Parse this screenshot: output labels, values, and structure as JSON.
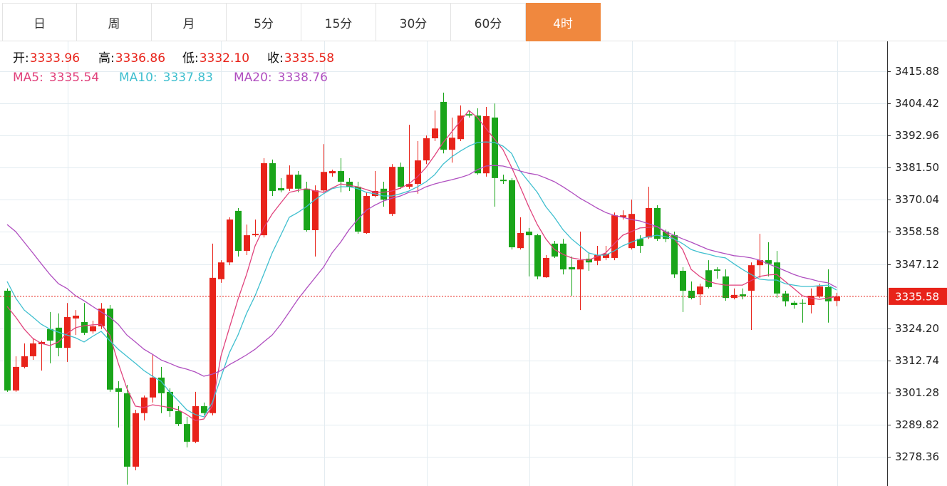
{
  "tabs": [
    "日",
    "周",
    "月",
    "5分",
    "15分",
    "30分",
    "60分",
    "4时"
  ],
  "active_tab": 7,
  "chart_data": {
    "type": "candlestick",
    "up_color": "#e8231a",
    "down_color": "#1aa51a",
    "quote": [
      {
        "label": "开:",
        "value": 3333.96
      },
      {
        "label": "高:",
        "value": 3336.86
      },
      {
        "label": "低:",
        "value": 3332.1,
        "value_label": "3332.10"
      },
      {
        "label": "收:",
        "value": 3335.58
      }
    ],
    "open": [
      3337.6,
      3302.0,
      3310.4,
      3314.2,
      3318.5,
      3323.9,
      3324.4,
      3317.2,
      3327.7,
      3326.4,
      3323.1,
      3324.9,
      3331.2,
      3302.8,
      3301.0,
      3274.8,
      3293.9,
      3299.5,
      3306.6,
      3301.5,
      3294.6,
      3290.0,
      3283.7,
      3296.4,
      3293.9,
      3341.7,
      3347.7,
      3366.1,
      3351.8,
      3357.4,
      3357.4,
      3383.1,
      3374.2,
      3374.0,
      3379.0,
      3374.0,
      3359.2,
      3373.4,
      3379.5,
      3380.3,
      3376.5,
      3374.7,
      3358.2,
      3371.4,
      3374.0,
      3365.0,
      3381.8,
      3374.7,
      3375.7,
      3384.1,
      3392.0,
      3405.0,
      3387.9,
      3391.7,
      3400.6,
      3400.1,
      3379.5,
      3399.4,
      3377.2,
      3377.0,
      3352.8,
      3358.7,
      3357.4,
      3342.4,
      3354.4,
      3354.4,
      3346.0,
      3345.2,
      3349.0,
      3348.3,
      3349.3,
      3349.3,
      3363.8,
      3352.8,
      3356.1,
      3356.6,
      3367.1,
      3358.7,
      3357.4,
      3344.7,
      3337.6,
      3336.3,
      3344.9,
      3345.2,
      3342.7,
      3335.0,
      3336.3,
      3337.6,
      3346.7,
      3348.5,
      3347.7,
      3336.6,
      3333.3,
      3333.3,
      3332.5,
      3335.5,
      3338.9,
      3333.96
    ],
    "close": [
      3302.0,
      3310.4,
      3314.2,
      3318.8,
      3319.3,
      3319.8,
      3317.2,
      3328.2,
      3328.7,
      3322.6,
      3324.9,
      3331.2,
      3302.3,
      3301.5,
      3274.8,
      3293.9,
      3299.5,
      3306.6,
      3301.0,
      3294.6,
      3290.0,
      3283.7,
      3296.4,
      3293.9,
      3342.2,
      3347.7,
      3363.0,
      3351.8,
      3357.4,
      3357.9,
      3383.1,
      3373.2,
      3373.4,
      3379.0,
      3374.0,
      3359.2,
      3373.4,
      3380.0,
      3380.3,
      3376.5,
      3374.7,
      3358.7,
      3371.4,
      3373.2,
      3370.1,
      3381.8,
      3374.7,
      3375.7,
      3384.1,
      3392.0,
      3395.5,
      3387.9,
      3392.2,
      3400.1,
      3400.1,
      3379.5,
      3399.9,
      3377.8,
      3376.7,
      3353.1,
      3358.2,
      3357.4,
      3342.7,
      3349.3,
      3349.8,
      3345.2,
      3345.2,
      3348.5,
      3347.7,
      3350.3,
      3350.8,
      3364.5,
      3364.5,
      3365.0,
      3353.6,
      3367.1,
      3356.1,
      3356.1,
      3343.4,
      3337.6,
      3335.0,
      3339.1,
      3338.9,
      3344.7,
      3335.0,
      3336.1,
      3335.6,
      3346.7,
      3348.5,
      3347.2,
      3336.6,
      3333.8,
      3332.5,
      3333.0,
      3335.8,
      3339.1,
      3333.8,
      3335.58
    ],
    "high": [
      3338.4,
      3314.2,
      3318.8,
      3320.6,
      3319.8,
      3330.0,
      3329.5,
      3333.2,
      3330.7,
      3333.2,
      3326.9,
      3333.2,
      3332.5,
      3305.3,
      3304.0,
      3295.1,
      3300.2,
      3314.7,
      3310.4,
      3302.8,
      3296.4,
      3292.6,
      3301.5,
      3297.7,
      3354.4,
      3348.5,
      3363.8,
      3367.1,
      3361.2,
      3363.0,
      3384.9,
      3384.4,
      3377.8,
      3382.3,
      3380.3,
      3376.5,
      3375.2,
      3389.9,
      3380.8,
      3384.9,
      3377.8,
      3376.5,
      3372.7,
      3380.3,
      3376.5,
      3382.8,
      3383.3,
      3396.8,
      3391.0,
      3393.0,
      3401.9,
      3408.3,
      3399.4,
      3403.7,
      3401.9,
      3402.7,
      3403.2,
      3404.4,
      3379.0,
      3377.8,
      3363.8,
      3360.0,
      3357.9,
      3350.3,
      3355.4,
      3356.1,
      3349.8,
      3358.7,
      3351.1,
      3353.6,
      3353.6,
      3365.5,
      3366.3,
      3370.1,
      3357.4,
      3374.7,
      3368.1,
      3359.4,
      3358.7,
      3346.0,
      3340.9,
      3340.1,
      3348.5,
      3346.0,
      3345.2,
      3338.4,
      3338.4,
      3347.7,
      3357.9,
      3354.9,
      3351.8,
      3337.6,
      3334.0,
      3334.5,
      3338.4,
      3340.1,
      3345.2,
      3336.86
    ],
    "low": [
      3301.5,
      3301.5,
      3309.9,
      3312.9,
      3309.1,
      3311.7,
      3314.2,
      3312.2,
      3321.8,
      3321.8,
      3322.3,
      3323.9,
      3301.5,
      3288.8,
      3268.4,
      3273.5,
      3291.3,
      3297.7,
      3293.9,
      3292.6,
      3289.3,
      3281.7,
      3283.2,
      3293.3,
      3293.1,
      3340.4,
      3346.7,
      3349.8,
      3350.3,
      3356.9,
      3356.6,
      3371.4,
      3372.7,
      3373.2,
      3372.7,
      3358.7,
      3349.8,
      3372.7,
      3378.3,
      3372.7,
      3373.2,
      3357.9,
      3357.9,
      3370.9,
      3367.6,
      3364.3,
      3374.0,
      3374.0,
      3372.2,
      3382.8,
      3391.0,
      3386.6,
      3383.3,
      3391.0,
      3399.4,
      3379.0,
      3378.3,
      3367.6,
      3375.7,
      3352.3,
      3352.3,
      3342.7,
      3341.7,
      3342.2,
      3349.3,
      3343.4,
      3335.8,
      3330.7,
      3344.7,
      3346.7,
      3348.5,
      3348.5,
      3363.0,
      3352.3,
      3351.1,
      3356.1,
      3355.4,
      3354.9,
      3342.2,
      3330.0,
      3334.5,
      3332.5,
      3338.4,
      3341.9,
      3334.0,
      3334.5,
      3334.5,
      3323.6,
      3342.2,
      3342.7,
      3335.0,
      3332.0,
      3331.2,
      3326.2,
      3329.5,
      3335.0,
      3326.2,
      3332.1
    ],
    "series": [
      {
        "name": "MA5:",
        "color": "#e0427c",
        "values": [
          3332.0,
          3328.2,
          3323.9,
          3320.6,
          3318.8,
          3318.0,
          3319.3,
          3322.3,
          3324.4,
          3325.1,
          3325.4,
          3325.6,
          3321.8,
          3311.7,
          3302.8,
          3296.4,
          3295.9,
          3296.9,
          3296.4,
          3295.9,
          3295.1,
          3293.4,
          3291.3,
          3291.8,
          3296.4,
          3314.2,
          3324.4,
          3334.5,
          3343.4,
          3353.6,
          3360.0,
          3365.0,
          3368.9,
          3372.7,
          3373.4,
          3374.0,
          3373.2,
          3372.7,
          3374.2,
          3375.7,
          3375.2,
          3374.7,
          3373.7,
          3372.7,
          3372.7,
          3373.2,
          3374.2,
          3375.7,
          3378.3,
          3381.6,
          3385.9,
          3390.5,
          3394.3,
          3398.1,
          3401.9,
          3399.4,
          3395.5,
          3391.7,
          3387.9,
          3381.6,
          3374.7,
          3367.6,
          3361.2,
          3356.1,
          3352.3,
          3350.6,
          3349.3,
          3348.8,
          3348.5,
          3349.8,
          3351.1,
          3354.4,
          3357.4,
          3358.7,
          3360.0,
          3360.2,
          3360.5,
          3358.4,
          3356.1,
          3352.3,
          3345.2,
          3342.7,
          3340.9,
          3340.1,
          3339.6,
          3339.6,
          3339.6,
          3341.2,
          3342.7,
          3343.2,
          3343.4,
          3340.9,
          3338.4,
          3335.8,
          3335.0,
          3334.5,
          3335.0,
          3335.54
        ]
      },
      {
        "name": "MA10:",
        "color": "#3fbfcf",
        "values": [
          3340.9,
          3335.0,
          3330.7,
          3328.2,
          3325.6,
          3323.9,
          3322.8,
          3321.8,
          3320.8,
          3319.3,
          3321.3,
          3323.1,
          3319.8,
          3316.7,
          3314.2,
          3311.7,
          3309.1,
          3307.1,
          3305.3,
          3301.5,
          3298.4,
          3295.1,
          3293.4,
          3292.6,
          3297.7,
          3306.6,
          3315.5,
          3321.8,
          3329.5,
          3335.8,
          3343.4,
          3351.1,
          3357.4,
          3363.8,
          3365.5,
          3367.6,
          3370.1,
          3372.2,
          3374.0,
          3374.7,
          3374.7,
          3374.0,
          3372.7,
          3372.2,
          3371.4,
          3371.4,
          3372.2,
          3373.2,
          3374.7,
          3376.5,
          3379.0,
          3382.8,
          3385.4,
          3387.4,
          3389.2,
          3390.5,
          3390.7,
          3390.5,
          3389.2,
          3386.6,
          3380.3,
          3376.5,
          3372.7,
          3367.6,
          3363.8,
          3359.4,
          3356.1,
          3353.6,
          3351.1,
          3350.3,
          3350.3,
          3351.8,
          3353.6,
          3354.9,
          3356.1,
          3356.9,
          3357.4,
          3356.9,
          3356.1,
          3354.4,
          3352.3,
          3351.3,
          3350.6,
          3349.8,
          3349.3,
          3347.2,
          3345.2,
          3343.4,
          3341.7,
          3341.4,
          3341.4,
          3340.1,
          3339.6,
          3339.1,
          3339.1,
          3339.4,
          3339.6,
          3337.83
        ]
      },
      {
        "name": "MA20:",
        "color": "#b04fc0",
        "values": [
          3361.2,
          3358.7,
          3354.9,
          3351.1,
          3347.2,
          3343.4,
          3340.1,
          3338.4,
          3335.8,
          3334.0,
          3332.0,
          3330.0,
          3328.2,
          3325.6,
          3321.8,
          3319.3,
          3316.7,
          3314.9,
          3312.9,
          3311.7,
          3310.4,
          3309.6,
          3308.6,
          3307.1,
          3307.8,
          3309.1,
          3311.2,
          3312.9,
          3314.7,
          3316.7,
          3319.3,
          3321.8,
          3325.6,
          3330.0,
          3334.5,
          3338.4,
          3342.2,
          3346.0,
          3351.1,
          3354.9,
          3359.4,
          3363.0,
          3366.3,
          3368.1,
          3369.6,
          3370.6,
          3371.4,
          3372.7,
          3373.2,
          3374.7,
          3375.7,
          3376.5,
          3377.2,
          3378.0,
          3379.0,
          3380.8,
          3382.1,
          3382.3,
          3382.1,
          3381.3,
          3380.3,
          3379.5,
          3379.0,
          3377.8,
          3376.5,
          3374.7,
          3372.7,
          3370.6,
          3368.9,
          3367.1,
          3365.5,
          3364.5,
          3363.8,
          3363.0,
          3362.5,
          3361.5,
          3360.5,
          3358.7,
          3357.4,
          3356.1,
          3354.9,
          3353.6,
          3352.3,
          3351.5,
          3350.8,
          3350.1,
          3349.8,
          3349.3,
          3348.5,
          3347.2,
          3346.0,
          3344.7,
          3343.4,
          3342.4,
          3341.7,
          3340.9,
          3340.4,
          3338.76
        ]
      }
    ],
    "ylim": [
      3267.9,
      3426.6
    ],
    "yticks": [
      3415.88,
      3404.42,
      3392.96,
      {
        "value": 3381.5,
        "label": "3381.50"
      },
      3370.04,
      3358.58,
      3347.12,
      {
        "value": 3324.2,
        "label": "3324.20"
      },
      3312.74,
      3301.28,
      3289.82,
      3278.36
    ],
    "grid": true
  }
}
